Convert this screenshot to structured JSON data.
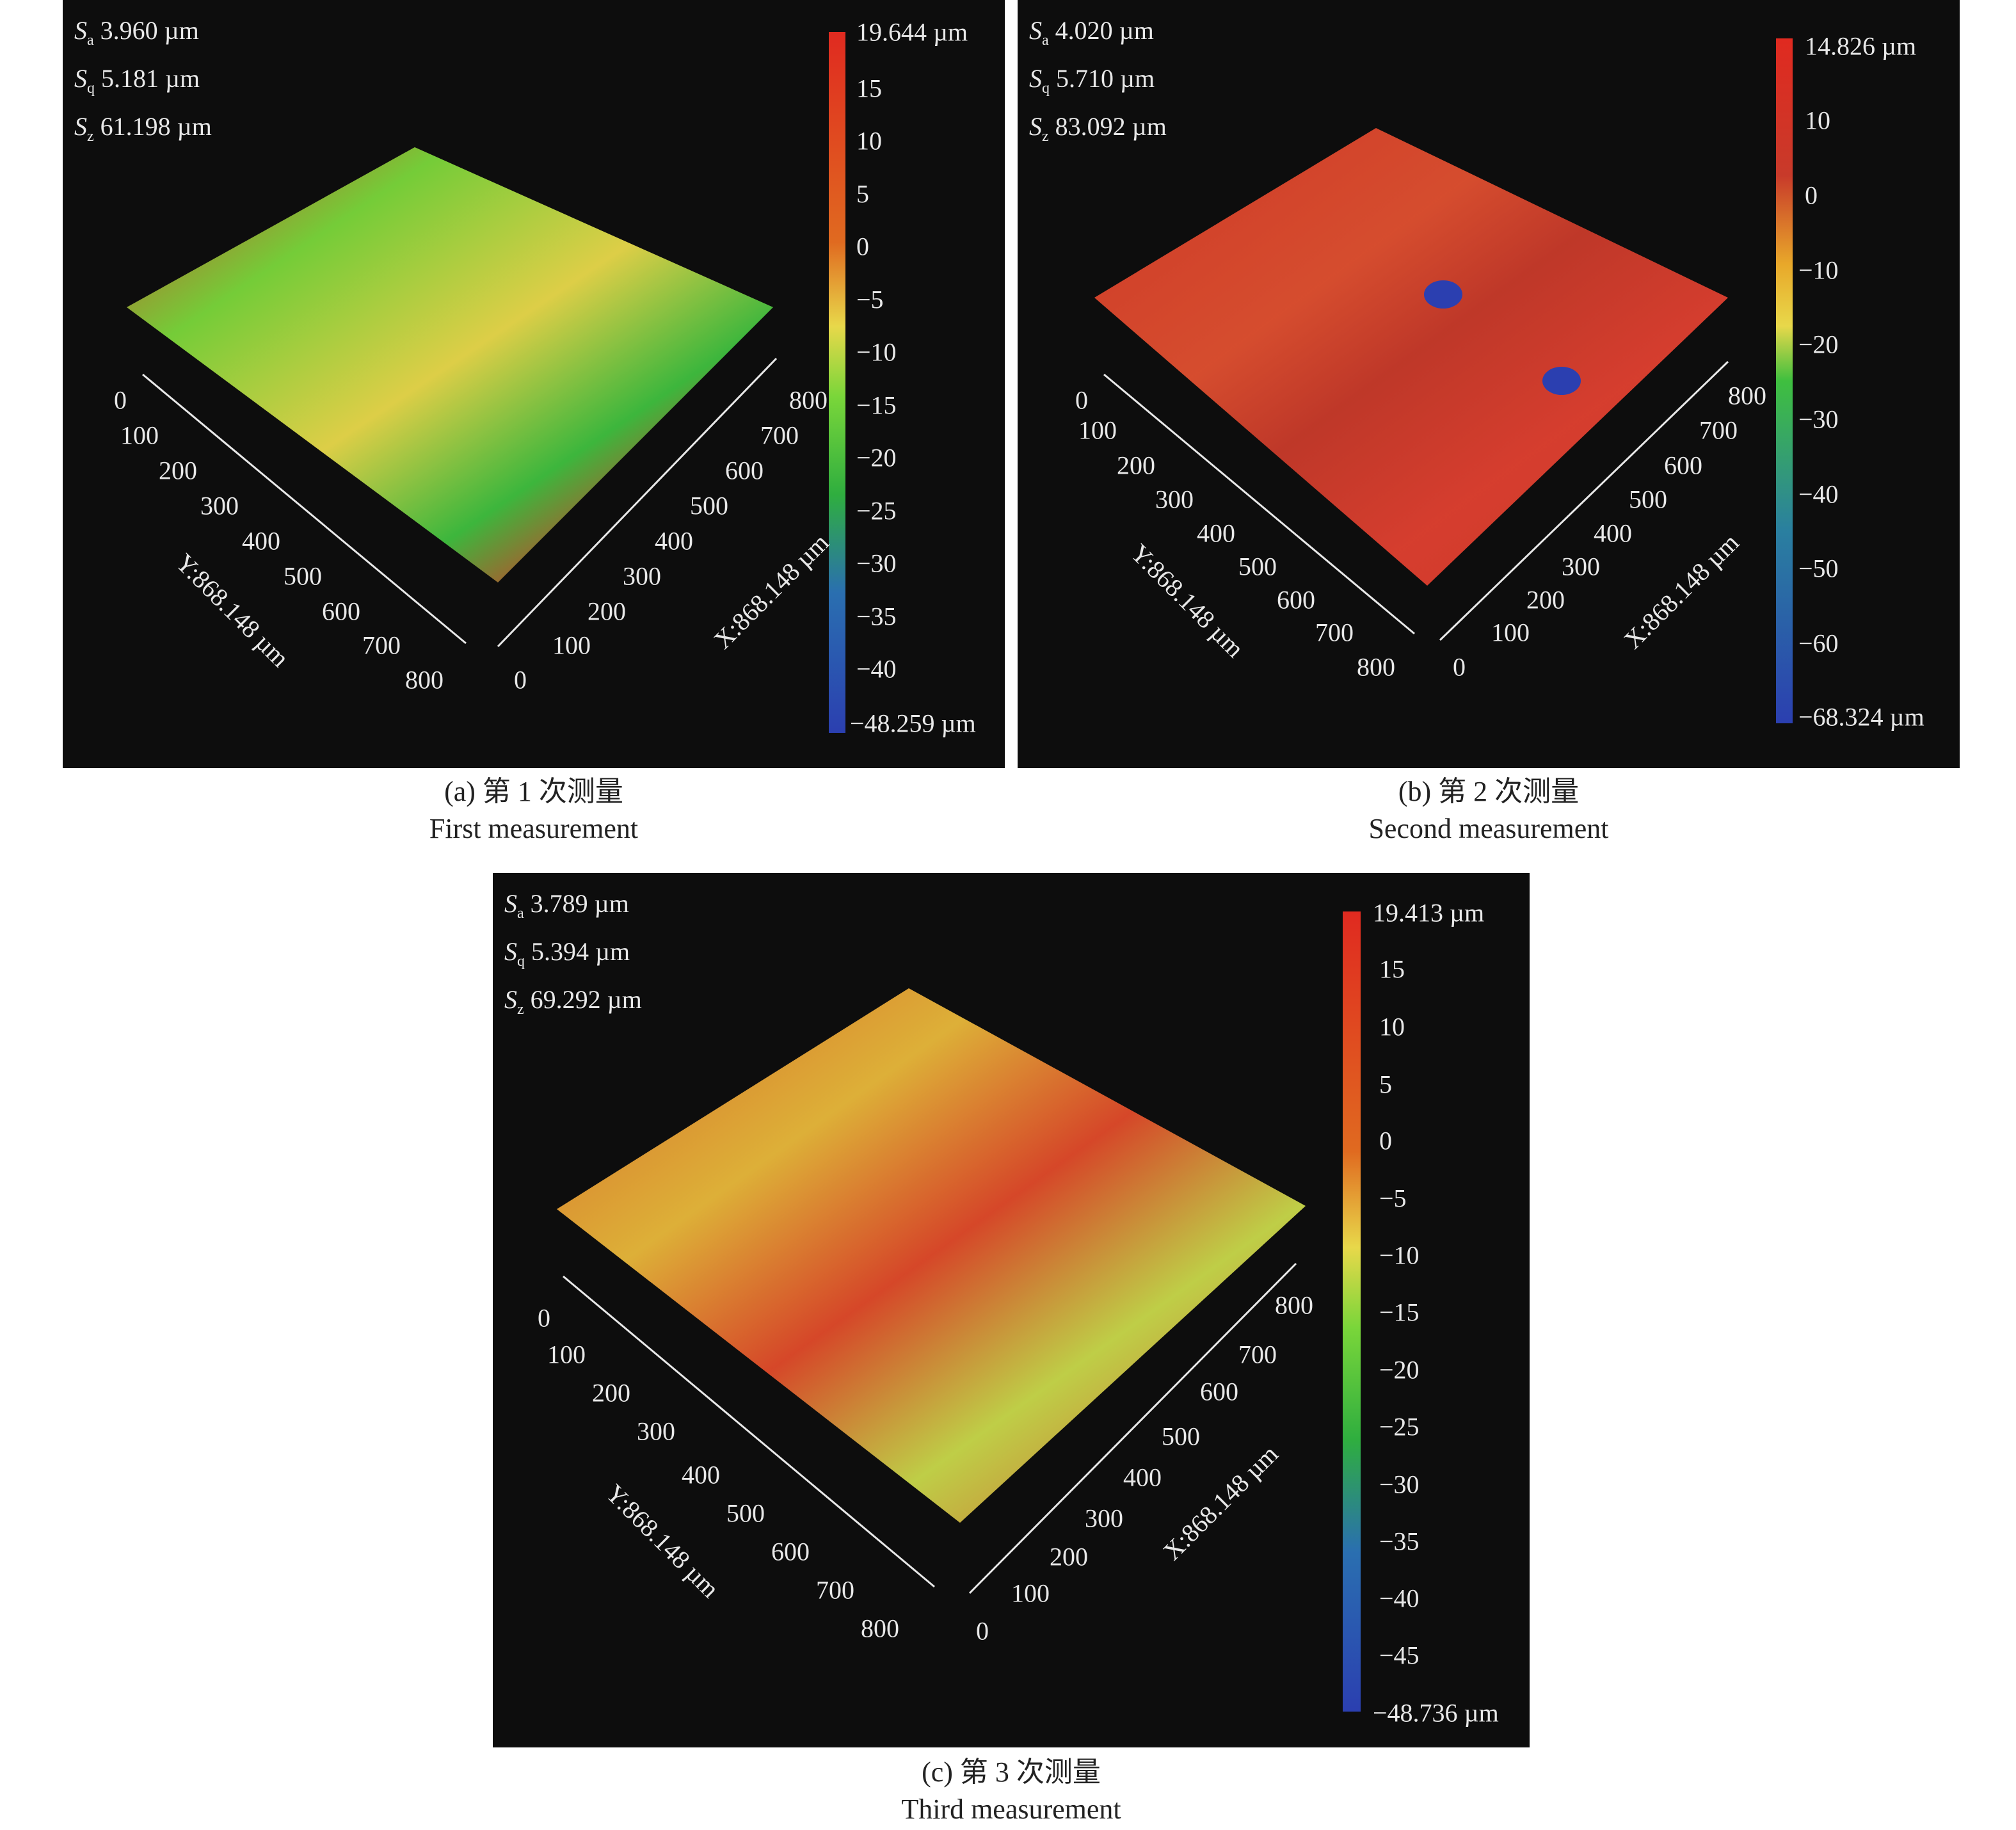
{
  "panels": [
    {
      "stats": {
        "sa": {
          "symbol": "S",
          "sub": "a",
          "value": "3.960 µm"
        },
        "sq": {
          "symbol": "S",
          "sub": "q",
          "value": "5.181 µm"
        },
        "sz": {
          "symbol": "S",
          "sub": "z",
          "value": "61.198 µm"
        }
      },
      "colorbar": {
        "labels": [
          "19.644 µm",
          "15",
          "10",
          "5",
          "0",
          "−5",
          "−10",
          "−15",
          "−20",
          "−25",
          "−30",
          "−35",
          "−40",
          "−48.259 µm"
        ],
        "max": 19.644,
        "min": -48.259
      },
      "y_axis": {
        "ticks": [
          "0",
          "100",
          "200",
          "300",
          "400",
          "500",
          "600",
          "700",
          "800"
        ],
        "label": "Y:868.148 µm"
      },
      "x_axis": {
        "ticks": [
          "0",
          "100",
          "200",
          "300",
          "400",
          "500",
          "600",
          "700",
          "800"
        ],
        "label": "X:868.148 µm"
      },
      "caption": {
        "zh": "(a) 第 1 次测量",
        "en": "First measurement"
      }
    },
    {
      "stats": {
        "sa": {
          "symbol": "S",
          "sub": "a",
          "value": "4.020 µm"
        },
        "sq": {
          "symbol": "S",
          "sub": "q",
          "value": "5.710 µm"
        },
        "sz": {
          "symbol": "S",
          "sub": "z",
          "value": "83.092 µm"
        }
      },
      "colorbar": {
        "labels": [
          "14.826 µm",
          "10",
          "0",
          "−10",
          "−20",
          "−30",
          "−40",
          "−50",
          "−60",
          "−68.324 µm"
        ],
        "max": 14.826,
        "min": -68.324
      },
      "y_axis": {
        "ticks": [
          "0",
          "100",
          "200",
          "300",
          "400",
          "500",
          "600",
          "700",
          "800"
        ],
        "label": "Y:868.148 µm"
      },
      "x_axis": {
        "ticks": [
          "0",
          "100",
          "200",
          "300",
          "400",
          "500",
          "600",
          "700",
          "800"
        ],
        "label": "X:868.148 µm"
      },
      "caption": {
        "zh": "(b) 第 2 次测量",
        "en": "Second measurement"
      }
    },
    {
      "stats": {
        "sa": {
          "symbol": "S",
          "sub": "a",
          "value": "3.789 µm"
        },
        "sq": {
          "symbol": "S",
          "sub": "q",
          "value": "5.394 µm"
        },
        "sz": {
          "symbol": "S",
          "sub": "z",
          "value": "69.292 µm"
        }
      },
      "colorbar": {
        "labels": [
          "19.413 µm",
          "15",
          "10",
          "5",
          "0",
          "−5",
          "−10",
          "−15",
          "−20",
          "−25",
          "−30",
          "−35",
          "−40",
          "−45",
          "−48.736 µm"
        ],
        "max": 19.413,
        "min": -48.736
      },
      "y_axis": {
        "ticks": [
          "0",
          "100",
          "200",
          "300",
          "400",
          "500",
          "600",
          "700",
          "800"
        ],
        "label": "Y:868.148 µm"
      },
      "x_axis": {
        "ticks": [
          "0",
          "100",
          "200",
          "300",
          "400",
          "500",
          "600",
          "700",
          "800"
        ],
        "label": "X:868.148 µm"
      },
      "caption": {
        "zh": "(c) 第 3 次测量",
        "en": "Third measurement"
      }
    }
  ],
  "colors": {
    "background": "#0d0d0d",
    "high": "#e03a2a",
    "mid": "#e8d84a",
    "low_mid": "#3fbf3f",
    "low": "#2b3fb0"
  }
}
